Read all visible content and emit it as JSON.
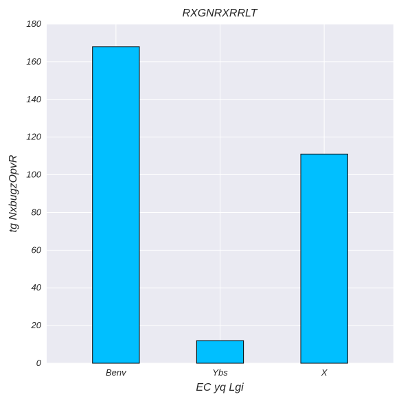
{
  "chart_data": {
    "type": "bar",
    "title": "RXGNRXRRLT",
    "xlabel": "EC yq Lgi",
    "ylabel": "tg NxbugzOpvR",
    "categories": [
      "Benv",
      "Ybs",
      "X"
    ],
    "values": [
      168,
      12,
      111
    ],
    "ylim": [
      0,
      180
    ],
    "yticks": [
      0,
      20,
      40,
      60,
      80,
      100,
      120,
      140,
      160,
      180
    ],
    "grid": true,
    "legend": "none",
    "colors": {
      "bar": "#00bfff",
      "bar_edge": "#000000",
      "plot_background": "#eaeaf2",
      "grid": "#ffffff",
      "text": "#262626"
    }
  }
}
